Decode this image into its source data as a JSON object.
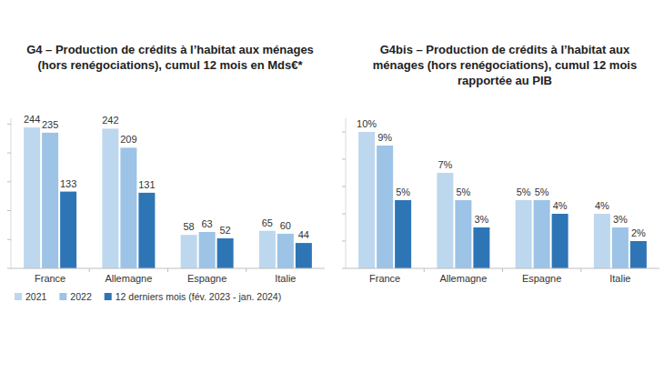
{
  "chart_data": [
    {
      "type": "bar",
      "title": "G4 – Production de crédits à l’habitat aux ménages (hors renégociations), cumul 12 mois en Mds€*",
      "categories": [
        "France",
        "Allemagne",
        "Espagne",
        "Italie"
      ],
      "series": [
        {
          "name": "2021",
          "color": "#bdd7ee",
          "values": [
            244,
            242,
            58,
            65
          ]
        },
        {
          "name": "2022",
          "color": "#9dc3e6",
          "values": [
            235,
            209,
            63,
            60
          ]
        },
        {
          "name": "12 derniers mois (fév. 2023 - jan. 2024)",
          "color": "#2e75b6",
          "values": [
            133,
            131,
            52,
            44
          ]
        }
      ],
      "ylim": [
        0,
        260
      ],
      "yticks": [
        0,
        50,
        100,
        150,
        200,
        250
      ],
      "tick_labels": "x",
      "grid": false,
      "legend": "bottom",
      "data_labels": true
    },
    {
      "type": "bar",
      "title": "G4bis – Production de crédits à l’habitat aux ménages (hors renégociations), cumul 12 mois rapportée au PIB",
      "categories": [
        "France",
        "Allemagne",
        "Espagne",
        "Italie"
      ],
      "series": [
        {
          "color": "#bdd7ee",
          "values": [
            10,
            7,
            5,
            4
          ],
          "value_labels": [
            "10%",
            "7%",
            "5%",
            "4%"
          ]
        },
        {
          "color": "#9dc3e6",
          "values": [
            9,
            5,
            5,
            3
          ],
          "value_labels": [
            "9%",
            "5%",
            "5%",
            "3%"
          ]
        },
        {
          "color": "#2e75b6",
          "values": [
            5,
            3,
            4,
            2
          ],
          "value_labels": [
            "5%",
            "3%",
            "4%",
            "2%"
          ]
        }
      ],
      "ylim": [
        0,
        11
      ],
      "yticks": [
        0,
        2,
        4,
        6,
        8,
        10
      ],
      "tick_labels": "x",
      "grid": false,
      "data_labels": true
    }
  ]
}
